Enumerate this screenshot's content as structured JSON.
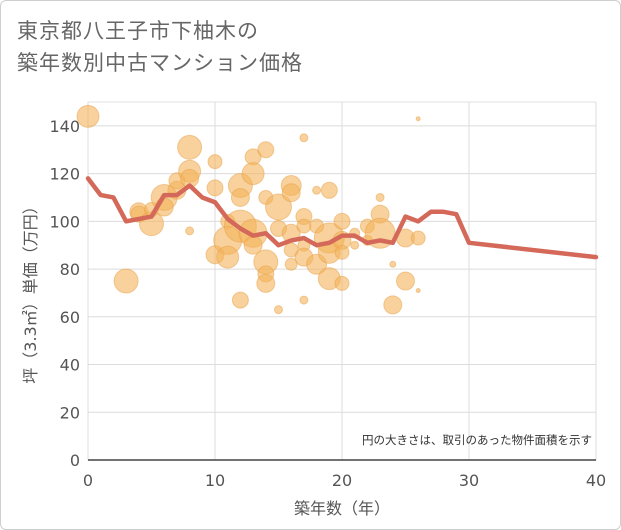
{
  "chart_data": {
    "type": "scatter",
    "title_lines": [
      "東京都八王子市下柚木の",
      "築年数別中古マンション価格"
    ],
    "xlabel": "築年数（年）",
    "ylabel": "坪（3.3㎡）単価（万円）",
    "xlim": [
      0,
      40
    ],
    "ylim": [
      0,
      150
    ],
    "xticks": [
      0,
      10,
      20,
      30,
      40
    ],
    "yticks": [
      0,
      20,
      40,
      60,
      80,
      100,
      120,
      140
    ],
    "grid": true,
    "note": "円の大きさは、取引のあった物件面積を示す",
    "colors": {
      "bubble": "#f3b35a",
      "line": "#d4695a"
    },
    "series": [
      {
        "type": "bubble",
        "points": [
          {
            "x": 0,
            "y": 144,
            "s": 11
          },
          {
            "x": 3,
            "y": 75,
            "s": 12
          },
          {
            "x": 4,
            "y": 104,
            "s": 9
          },
          {
            "x": 4,
            "y": 103,
            "s": 8
          },
          {
            "x": 5,
            "y": 99,
            "s": 12
          },
          {
            "x": 5,
            "y": 105,
            "s": 7
          },
          {
            "x": 6,
            "y": 110,
            "s": 13
          },
          {
            "x": 6,
            "y": 106,
            "s": 9
          },
          {
            "x": 7,
            "y": 113,
            "s": 9
          },
          {
            "x": 7,
            "y": 117,
            "s": 8
          },
          {
            "x": 8,
            "y": 131,
            "s": 12
          },
          {
            "x": 8,
            "y": 121,
            "s": 11
          },
          {
            "x": 8,
            "y": 118,
            "s": 9
          },
          {
            "x": 8,
            "y": 96,
            "s": 4
          },
          {
            "x": 10,
            "y": 125,
            "s": 7
          },
          {
            "x": 10,
            "y": 114,
            "s": 8
          },
          {
            "x": 10,
            "y": 86,
            "s": 9
          },
          {
            "x": 11,
            "y": 100,
            "s": 7
          },
          {
            "x": 11,
            "y": 92,
            "s": 14
          },
          {
            "x": 11,
            "y": 85,
            "s": 11
          },
          {
            "x": 12,
            "y": 115,
            "s": 12
          },
          {
            "x": 12,
            "y": 110,
            "s": 9
          },
          {
            "x": 12,
            "y": 98,
            "s": 16
          },
          {
            "x": 12,
            "y": 67,
            "s": 8
          },
          {
            "x": 13,
            "y": 127,
            "s": 8
          },
          {
            "x": 13,
            "y": 120,
            "s": 11
          },
          {
            "x": 13,
            "y": 95,
            "s": 14
          },
          {
            "x": 13,
            "y": 90,
            "s": 9
          },
          {
            "x": 14,
            "y": 130,
            "s": 8
          },
          {
            "x": 14,
            "y": 110,
            "s": 7
          },
          {
            "x": 14,
            "y": 83,
            "s": 12
          },
          {
            "x": 14,
            "y": 78,
            "s": 8
          },
          {
            "x": 14,
            "y": 74,
            "s": 9
          },
          {
            "x": 15,
            "y": 106,
            "s": 13
          },
          {
            "x": 15,
            "y": 97,
            "s": 8
          },
          {
            "x": 15,
            "y": 63,
            "s": 4
          },
          {
            "x": 16,
            "y": 115,
            "s": 10
          },
          {
            "x": 16,
            "y": 112,
            "s": 9
          },
          {
            "x": 16,
            "y": 95,
            "s": 9
          },
          {
            "x": 16,
            "y": 88,
            "s": 7
          },
          {
            "x": 16,
            "y": 82,
            "s": 6
          },
          {
            "x": 17,
            "y": 135,
            "s": 4
          },
          {
            "x": 17,
            "y": 102,
            "s": 8
          },
          {
            "x": 17,
            "y": 98,
            "s": 7
          },
          {
            "x": 17,
            "y": 90,
            "s": 6
          },
          {
            "x": 17,
            "y": 85,
            "s": 9
          },
          {
            "x": 17,
            "y": 67,
            "s": 4
          },
          {
            "x": 18,
            "y": 113,
            "s": 4
          },
          {
            "x": 18,
            "y": 98,
            "s": 7
          },
          {
            "x": 18,
            "y": 82,
            "s": 10
          },
          {
            "x": 19,
            "y": 113,
            "s": 8
          },
          {
            "x": 19,
            "y": 93,
            "s": 15
          },
          {
            "x": 19,
            "y": 87,
            "s": 11
          },
          {
            "x": 19,
            "y": 76,
            "s": 11
          },
          {
            "x": 20,
            "y": 100,
            "s": 8
          },
          {
            "x": 20,
            "y": 92,
            "s": 9
          },
          {
            "x": 20,
            "y": 87,
            "s": 7
          },
          {
            "x": 20,
            "y": 74,
            "s": 7
          },
          {
            "x": 21,
            "y": 95,
            "s": 5
          },
          {
            "x": 21,
            "y": 90,
            "s": 4
          },
          {
            "x": 22,
            "y": 98,
            "s": 7
          },
          {
            "x": 22,
            "y": 92,
            "s": 5
          },
          {
            "x": 23,
            "y": 110,
            "s": 4
          },
          {
            "x": 23,
            "y": 103,
            "s": 9
          },
          {
            "x": 23,
            "y": 95,
            "s": 15
          },
          {
            "x": 24,
            "y": 65,
            "s": 9
          },
          {
            "x": 24,
            "y": 82,
            "s": 3
          },
          {
            "x": 25,
            "y": 93,
            "s": 9
          },
          {
            "x": 25,
            "y": 75,
            "s": 9
          },
          {
            "x": 26,
            "y": 143,
            "s": 2
          },
          {
            "x": 26,
            "y": 93,
            "s": 7
          },
          {
            "x": 26,
            "y": 71,
            "s": 2
          }
        ]
      },
      {
        "type": "line",
        "points": [
          {
            "x": 0,
            "y": 118
          },
          {
            "x": 1,
            "y": 111
          },
          {
            "x": 2,
            "y": 110
          },
          {
            "x": 3,
            "y": 100
          },
          {
            "x": 4,
            "y": 101
          },
          {
            "x": 5,
            "y": 102
          },
          {
            "x": 6,
            "y": 111
          },
          {
            "x": 7,
            "y": 111
          },
          {
            "x": 8,
            "y": 115
          },
          {
            "x": 9,
            "y": 110
          },
          {
            "x": 10,
            "y": 108
          },
          {
            "x": 11,
            "y": 101
          },
          {
            "x": 12,
            "y": 97
          },
          {
            "x": 13,
            "y": 94
          },
          {
            "x": 14,
            "y": 95
          },
          {
            "x": 15,
            "y": 90
          },
          {
            "x": 16,
            "y": 92
          },
          {
            "x": 17,
            "y": 93
          },
          {
            "x": 18,
            "y": 90
          },
          {
            "x": 19,
            "y": 91
          },
          {
            "x": 20,
            "y": 94
          },
          {
            "x": 21,
            "y": 94
          },
          {
            "x": 22,
            "y": 91
          },
          {
            "x": 23,
            "y": 92
          },
          {
            "x": 24,
            "y": 91
          },
          {
            "x": 25,
            "y": 102
          },
          {
            "x": 26,
            "y": 100
          },
          {
            "x": 27,
            "y": 104
          },
          {
            "x": 28,
            "y": 104
          },
          {
            "x": 29,
            "y": 103
          },
          {
            "x": 30,
            "y": 91
          },
          {
            "x": 40,
            "y": 85
          }
        ]
      }
    ]
  }
}
